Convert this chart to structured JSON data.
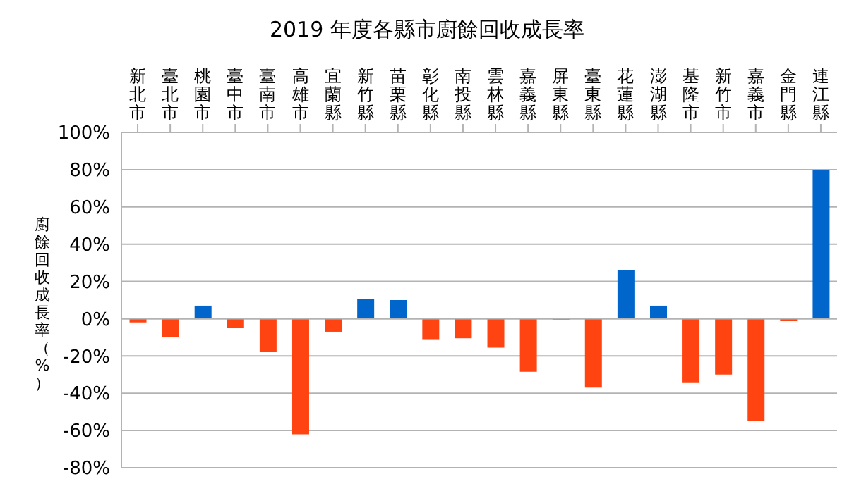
{
  "chart_data": {
    "type": "bar",
    "title": "2019 年度各縣市廚餘回收成長率",
    "ylabel": "廚餘回收成長率（%）",
    "categories": [
      "新北市",
      "臺北市",
      "桃園市",
      "臺中市",
      "臺南市",
      "高雄市",
      "宜蘭縣",
      "新竹縣",
      "苗栗縣",
      "彰化縣",
      "南投縣",
      "雲林縣",
      "嘉義縣",
      "屏東縣",
      "臺東縣",
      "花蓮縣",
      "澎湖縣",
      "基隆市",
      "新竹市",
      "嘉義市",
      "金門縣",
      "連江縣"
    ],
    "values": [
      -2,
      -10,
      7,
      -5,
      -18,
      -62,
      -7,
      10.5,
      10,
      -11,
      -10.5,
      -15.5,
      -28.5,
      -0.5,
      -37,
      26,
      7,
      -34.5,
      -30,
      -55,
      -1,
      80
    ],
    "colors": [
      "#ff4411",
      "#ff4411",
      "#0066cc",
      "#ff4411",
      "#ff4411",
      "#ff4411",
      "#ff4411",
      "#0066cc",
      "#0066cc",
      "#ff4411",
      "#ff4411",
      "#ff4411",
      "#ff4411",
      "#ff4411",
      "#ff4411",
      "#0066cc",
      "#0066cc",
      "#ff4411",
      "#ff4411",
      "#ff4411",
      "#ff4411",
      "#0066cc"
    ],
    "ylim": [
      -80,
      100
    ],
    "yticks": [
      {
        "value": -80,
        "label": "-80%"
      },
      {
        "value": -60,
        "label": "-60%"
      },
      {
        "value": -40,
        "label": "-40%"
      },
      {
        "value": -20,
        "label": "-20%"
      },
      {
        "value": 0,
        "label": "0%"
      },
      {
        "value": 20,
        "label": "20%"
      },
      {
        "value": 40,
        "label": "40%"
      },
      {
        "value": 60,
        "label": "60%"
      },
      {
        "value": 80,
        "label": "80%"
      },
      {
        "value": 100,
        "label": "100%"
      }
    ],
    "grid": "y"
  }
}
